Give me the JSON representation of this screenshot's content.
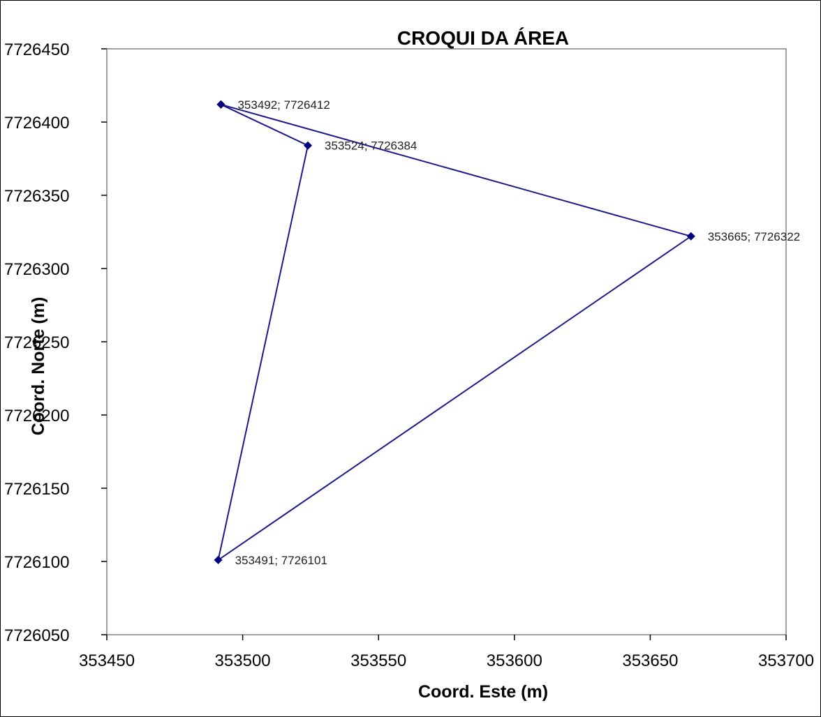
{
  "chart_data": {
    "type": "scatter",
    "title": "CROQUI DA ÁREA",
    "xlabel": "Coord. Este (m)",
    "ylabel": "Coord. Norte (m)",
    "xlim": [
      353450,
      353700
    ],
    "ylim": [
      7726050,
      7726450
    ],
    "x_ticks": [
      "353450",
      "353500",
      "353550",
      "353600",
      "353650",
      "353700"
    ],
    "y_ticks": [
      "7726450",
      "7726400",
      "7726350",
      "7726300",
      "7726250",
      "7726200",
      "7726150",
      "7726100",
      "7726050"
    ],
    "grid": false,
    "legend": "none",
    "line_color": "#1a1a8c",
    "marker_color": "#00007f",
    "series": [
      {
        "points": [
          {
            "x": 353492,
            "y": 7726412,
            "label": "353492; 7726412"
          },
          {
            "x": 353524,
            "y": 7726384,
            "label": "353524; 7726384"
          },
          {
            "x": 353491,
            "y": 7726101,
            "label": "353491; 7726101"
          },
          {
            "x": 353665,
            "y": 7726322,
            "label": "353665; 7726322"
          },
          {
            "x": 353492,
            "y": 7726412,
            "label": ""
          }
        ]
      }
    ]
  }
}
